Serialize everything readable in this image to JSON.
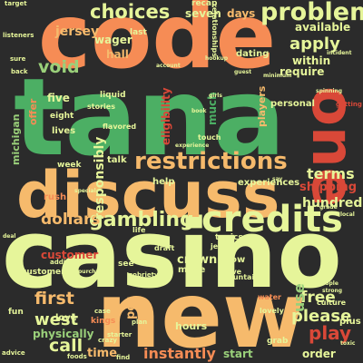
{
  "colors": {
    "background": "#2b2b2b",
    "palette": [
      "#f68c55",
      "#4caf64",
      "#e6f59a",
      "#f6ba6c",
      "#d94838",
      "#9ad07a",
      "#c8e88b",
      "#2e8b57"
    ]
  },
  "words": [
    {
      "text": "code",
      "c": "#f68c55"
    },
    {
      "text": "tana",
      "c": "#4caf64"
    },
    {
      "text": "casino",
      "c": "#e6f59a"
    },
    {
      "text": "new",
      "c": "#f6ba6c"
    },
    {
      "text": "discuss",
      "c": "#f6ba6c"
    },
    {
      "text": "one",
      "c": "#d94838"
    },
    {
      "text": "credits",
      "c": "#e6f59a"
    },
    {
      "text": "restrictions",
      "c": "#f6ba6c"
    },
    {
      "text": "problem",
      "c": "#e6f59a"
    },
    {
      "text": "choices",
      "c": "#e6f59a"
    },
    {
      "text": "gambling",
      "c": "#e6f59a"
    },
    {
      "text": "apply",
      "c": "#e6f59a"
    },
    {
      "text": "void",
      "c": "#9ad07a"
    },
    {
      "text": "dollars",
      "c": "#f6ba6c"
    },
    {
      "text": "first",
      "c": "#f6ba6c"
    },
    {
      "text": "west",
      "c": "#e6f59a"
    },
    {
      "text": "call",
      "c": "#e6f59a"
    },
    {
      "text": "please",
      "c": "#e6f59a"
    },
    {
      "text": "play",
      "c": "#d94838"
    },
    {
      "text": "free",
      "c": "#e6f59a"
    },
    {
      "text": "use",
      "c": "#9ad07a"
    },
    {
      "text": "terms",
      "c": "#e6f59a"
    },
    {
      "text": "shipping",
      "c": "#d94838"
    },
    {
      "text": "hundred",
      "c": "#e6f59a"
    },
    {
      "text": "responsibly",
      "c": "#e6f59a"
    },
    {
      "text": "jersey",
      "c": "#f6ba6c"
    },
    {
      "text": "wager",
      "c": "#e6f59a"
    },
    {
      "text": "hall",
      "c": "#f6ba6c"
    },
    {
      "text": "five",
      "c": "#e6f59a"
    },
    {
      "text": "eight",
      "c": "#e6f59a"
    },
    {
      "text": "lives",
      "c": "#e6f59a"
    },
    {
      "text": "offer",
      "c": "#f68c55"
    },
    {
      "text": "michigan",
      "c": "#9ad07a"
    },
    {
      "text": "eligibility",
      "c": "#d94838"
    },
    {
      "text": "much",
      "c": "#4caf64"
    },
    {
      "text": "within",
      "c": "#e6f59a"
    },
    {
      "text": "require",
      "c": "#e6f59a"
    },
    {
      "text": "dating",
      "c": "#e6f59a"
    },
    {
      "text": "available",
      "c": "#e6f59a"
    },
    {
      "text": "days",
      "c": "#f6ba6c"
    },
    {
      "text": "seven",
      "c": "#e6f59a"
    },
    {
      "text": "recap",
      "c": "#e6f59a"
    },
    {
      "text": "last",
      "c": "#e6f59a"
    },
    {
      "text": "players",
      "c": "#f6ba6c"
    },
    {
      "text": "personal",
      "c": "#e6f59a"
    },
    {
      "text": "experiences",
      "c": "#e6f59a"
    },
    {
      "text": "customer",
      "c": "#d94838"
    },
    {
      "text": "customers",
      "c": "#e6f59a"
    },
    {
      "text": "physically",
      "c": "#9ad07a"
    },
    {
      "text": "instantly",
      "c": "#f68c55"
    },
    {
      "text": "time",
      "c": "#f6ba6c"
    },
    {
      "text": "hours",
      "c": "#e6f59a"
    },
    {
      "text": "crown",
      "c": "#e6f59a"
    },
    {
      "text": "make",
      "c": "#e6f59a"
    },
    {
      "text": "show",
      "c": "#e6f59a"
    },
    {
      "text": "topics",
      "c": "#e6f59a"
    },
    {
      "text": "start",
      "c": "#9ad07a"
    },
    {
      "text": "order",
      "c": "#e6f59a"
    },
    {
      "text": "per",
      "c": "#f6ba6c"
    },
    {
      "text": "see",
      "c": "#e6f59a"
    },
    {
      "text": "talk",
      "c": "#e6f59a"
    },
    {
      "text": "week",
      "c": "#e6f59a"
    },
    {
      "text": "rush",
      "c": "#f68c55"
    },
    {
      "text": "love",
      "c": "#e6f59a"
    },
    {
      "text": "fun",
      "c": "#e6f59a"
    },
    {
      "text": "kings",
      "c": "#f68c55"
    },
    {
      "text": "help",
      "c": "#e6f59a"
    },
    {
      "text": "life",
      "c": "#e6f59a"
    },
    {
      "text": "liquid",
      "c": "#e6f59a"
    },
    {
      "text": "stories",
      "c": "#e6f59a"
    },
    {
      "text": "flavored",
      "c": "#e6f59a"
    },
    {
      "text": "touch",
      "c": "#e6f59a"
    },
    {
      "text": "relationships",
      "c": "#e6f59a"
    },
    {
      "text": "dive",
      "c": "#e6f59a"
    },
    {
      "text": "mountain",
      "c": "#e6f59a"
    },
    {
      "text": "water",
      "c": "#f68c55"
    },
    {
      "text": "culture",
      "c": "#e6f59a"
    },
    {
      "text": "plus",
      "c": "#e6f59a"
    },
    {
      "text": "grab",
      "c": "#e6f59a"
    },
    {
      "text": "lovely",
      "c": "#e6f59a"
    },
    {
      "text": "jeff",
      "c": "#e6f59a"
    },
    {
      "text": "crazy",
      "c": "#e6f59a"
    },
    {
      "text": "draft",
      "c": "#e6f59a"
    },
    {
      "text": "sobriety",
      "c": "#e6f59a"
    },
    {
      "text": "plan",
      "c": "#e6f59a"
    },
    {
      "text": "case",
      "c": "#e6f59a"
    },
    {
      "text": "starter",
      "c": "#e6f59a"
    },
    {
      "text": "find",
      "c": "#e6f59a"
    },
    {
      "text": "foods",
      "c": "#e6f59a"
    },
    {
      "text": "advice",
      "c": "#e6f59a"
    },
    {
      "text": "addiction",
      "c": "#e6f59a"
    },
    {
      "text": "purchase",
      "c": "#e6f59a"
    },
    {
      "text": "target",
      "c": "#e6f59a"
    },
    {
      "text": "listeners",
      "c": "#e6f59a"
    },
    {
      "text": "sure",
      "c": "#e6f59a"
    },
    {
      "text": "back",
      "c": "#e6f59a"
    },
    {
      "text": "account",
      "c": "#e6f59a"
    },
    {
      "text": "hookup",
      "c": "#e6f59a"
    },
    {
      "text": "book",
      "c": "#e6f59a"
    },
    {
      "text": "girls",
      "c": "#e6f59a"
    },
    {
      "text": "guest",
      "c": "#e6f59a"
    },
    {
      "text": "minimum",
      "c": "#e6f59a"
    },
    {
      "text": "getting",
      "c": "#d94838"
    },
    {
      "text": "spinning",
      "c": "#e6f59a"
    },
    {
      "text": "strong",
      "c": "#e6f59a"
    },
    {
      "text": "people",
      "c": "#e6f59a"
    },
    {
      "text": "toxic",
      "c": "#e6f59a"
    },
    {
      "text": "grade",
      "c": "#e6f59a"
    },
    {
      "text": "local",
      "c": "#e6f59a"
    },
    {
      "text": "say",
      "c": "#e6f59a"
    },
    {
      "text": "deal",
      "c": "#e6f59a"
    },
    {
      "text": "special",
      "c": "#e6f59a"
    },
    {
      "text": "experience",
      "c": "#e6f59a"
    },
    {
      "text": "incident",
      "c": "#e6f59a"
    }
  ]
}
